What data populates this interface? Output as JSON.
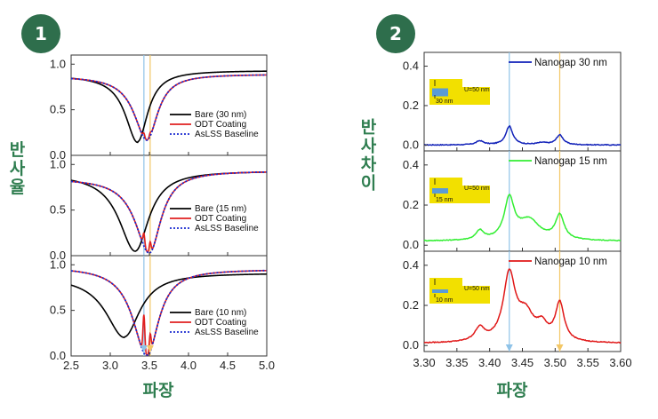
{
  "badges": [
    "1",
    "2"
  ],
  "colors": {
    "badge": "#2e6e4c",
    "label": "#2e7d4f",
    "bare": "#000000",
    "odt": "#e02020",
    "baseline": "#1a2ad0",
    "blue_marker": "#8fc3e8",
    "orange_marker": "#f3c766",
    "nano30": "#1020b8",
    "nano15": "#33ee33",
    "nano10": "#e01818",
    "inset_gold": "#f2e000",
    "inset_blue": "#5b9bd5"
  },
  "left_ylabel": "반사율",
  "right_ylabel": "반사차이",
  "left_xlabel": "파장",
  "right_xlabel": "파장",
  "chart_data": [
    {
      "type": "line",
      "id": "left-stack",
      "title": "",
      "xlabel": "파장",
      "ylabel": "반사율",
      "xlim": [
        2.5,
        5.0
      ],
      "ylim": [
        0.0,
        1.1
      ],
      "x_ticks": [
        "2.5",
        "3.0",
        "3.5",
        "4.0",
        "4.5",
        "5.0"
      ],
      "y_ticks": [
        "0.0",
        "0.5",
        "1.0"
      ],
      "markers": {
        "blue": 3.43,
        "orange": 3.51
      },
      "panels": [
        {
          "gap_nm": 30,
          "legend": [
            "Bare (30 nm)",
            "ODT Coating",
            "AsLSS Baseline"
          ],
          "bare": {
            "center": 3.35,
            "depth": 0.78,
            "width": 0.21,
            "floor": 0.93,
            "x0": 0.88
          },
          "coated": {
            "center": 3.47,
            "depth": 0.72,
            "width": 0.22,
            "floor": 0.89,
            "x0": 0.87
          },
          "odt_features": [
            {
              "x": 3.43,
              "amp": 0.05,
              "w": 0.012
            },
            {
              "x": 3.51,
              "amp": 0.04,
              "w": 0.012
            }
          ]
        },
        {
          "gap_nm": 15,
          "legend": [
            "Bare (15 nm)",
            "ODT Coating",
            "AsLSS Baseline"
          ],
          "bare": {
            "center": 3.32,
            "depth": 0.88,
            "width": 0.28,
            "floor": 0.93,
            "x0": 0.9
          },
          "coated": {
            "center": 3.5,
            "depth": 0.9,
            "width": 0.24,
            "floor": 0.93,
            "x0": 0.85
          },
          "odt_features": [
            {
              "x": 3.43,
              "amp": 0.14,
              "w": 0.012
            },
            {
              "x": 3.51,
              "amp": 0.12,
              "w": 0.012
            }
          ]
        },
        {
          "gap_nm": 10,
          "legend": [
            "Bare (10 nm)",
            "ODT Coating",
            "AsLSS Baseline"
          ],
          "bare": {
            "center": 3.18,
            "depth": 0.7,
            "width": 0.32,
            "floor": 0.91,
            "x0": 0.88
          },
          "coated": {
            "center": 3.47,
            "depth": 0.95,
            "width": 0.24,
            "floor": 0.95,
            "x0": 0.98
          },
          "odt_features": [
            {
              "x": 3.43,
              "amp": 0.42,
              "w": 0.012
            },
            {
              "x": 3.51,
              "amp": 0.2,
              "w": 0.012
            }
          ]
        }
      ]
    },
    {
      "type": "line",
      "id": "right-stack",
      "title": "",
      "xlabel": "파장",
      "ylabel": "반사차이",
      "xlim": [
        3.3,
        3.6
      ],
      "ylim": [
        -0.03,
        0.47
      ],
      "x_ticks": [
        "3.30",
        "3.35",
        "3.40",
        "3.45",
        "3.50",
        "3.55",
        "3.60"
      ],
      "y_ticks": [
        "0.0",
        "0.2",
        "0.4"
      ],
      "markers": {
        "blue": 3.43,
        "orange": 3.507
      },
      "panels": [
        {
          "gap_nm": 30,
          "legend": "Nanogap 30 nm",
          "inset_labels": [
            "U=50 nm",
            "30 nm"
          ],
          "base": 0.0,
          "peaks": [
            {
              "x": 3.385,
              "a": 0.02,
              "w": 0.007
            },
            {
              "x": 3.43,
              "a": 0.095,
              "w": 0.0065
            },
            {
              "x": 3.48,
              "a": 0.01,
              "w": 0.01
            },
            {
              "x": 3.507,
              "a": 0.05,
              "w": 0.0065
            }
          ]
        },
        {
          "gap_nm": 15,
          "legend": "Nanogap 15 nm",
          "inset_labels": [
            "U=50 nm",
            "15 nm"
          ],
          "base": 0.02,
          "peaks": [
            {
              "x": 3.385,
              "a": 0.045,
              "w": 0.007
            },
            {
              "x": 3.43,
              "a": 0.2,
              "w": 0.009
            },
            {
              "x": 3.46,
              "a": 0.1,
              "w": 0.02
            },
            {
              "x": 3.507,
              "a": 0.12,
              "w": 0.008
            }
          ]
        },
        {
          "gap_nm": 10,
          "legend": "Nanogap 10 nm",
          "inset_labels": [
            "U=50 nm",
            "10 nm"
          ],
          "base": 0.01,
          "peaks": [
            {
              "x": 3.385,
              "a": 0.065,
              "w": 0.009
            },
            {
              "x": 3.43,
              "a": 0.33,
              "w": 0.011
            },
            {
              "x": 3.455,
              "a": 0.13,
              "w": 0.015
            },
            {
              "x": 3.48,
              "a": 0.07,
              "w": 0.01
            },
            {
              "x": 3.507,
              "a": 0.19,
              "w": 0.008
            }
          ]
        }
      ]
    }
  ]
}
